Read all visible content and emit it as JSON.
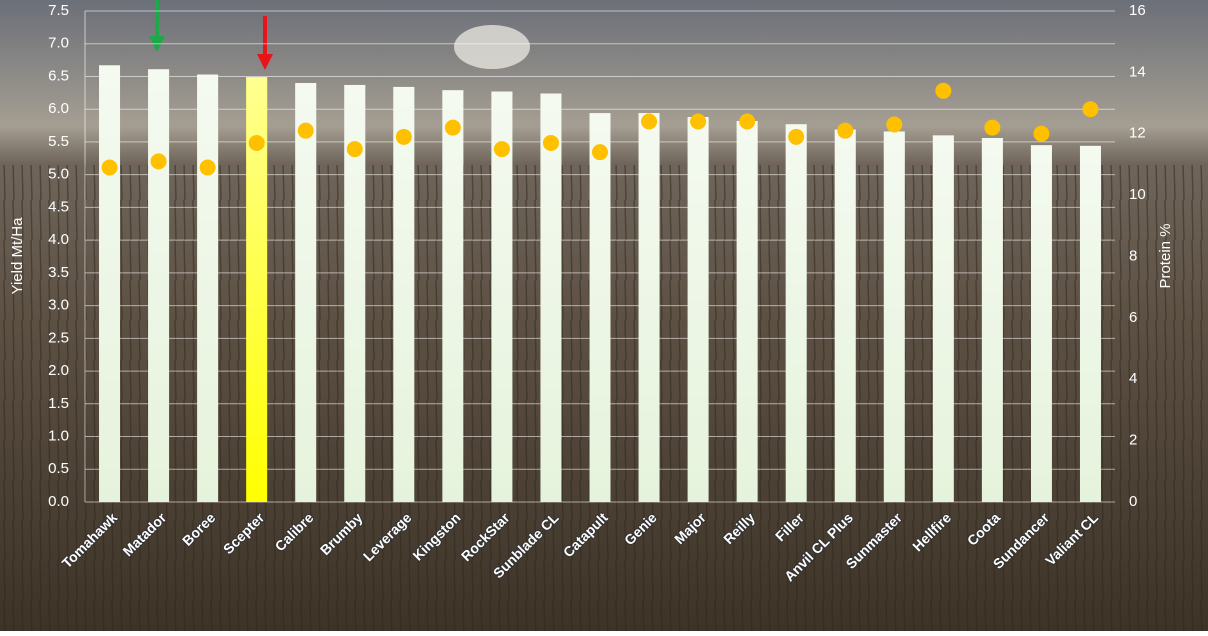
{
  "chart_data": {
    "type": "bar",
    "categories": [
      "Tomahawk",
      "Matador",
      "Boree",
      "Scepter",
      "Calibre",
      "Brumby",
      "Leverage",
      "Kingston",
      "RockStar",
      "Sunblade CL",
      "Catapult",
      "Genie",
      "Major",
      "Reilly",
      "Filler",
      "Anvil CL Plus",
      "Sunmaster",
      "Hellfire",
      "Coota",
      "Sundancer",
      "Valiant CL"
    ],
    "series": [
      {
        "type": "bar",
        "values": [
          6.67,
          6.61,
          6.53,
          6.49,
          6.4,
          6.37,
          6.34,
          6.29,
          6.27,
          6.24,
          5.94,
          5.94,
          5.88,
          5.82,
          5.77,
          5.69,
          5.66,
          5.6,
          5.56,
          5.45,
          5.44
        ],
        "colors": [
          "#e6f3dc",
          "#e6f3dc",
          "#e6f3dc",
          "#ffff00",
          "#e6f3dc",
          "#e6f3dc",
          "#e6f3dc",
          "#e6f3dc",
          "#e6f3dc",
          "#e6f3dc",
          "#e6f3dc",
          "#e6f3dc",
          "#e6f3dc",
          "#e6f3dc",
          "#e6f3dc",
          "#e6f3dc",
          "#e6f3dc",
          "#e6f3dc",
          "#e6f3dc",
          "#e6f3dc",
          "#e6f3dc"
        ]
      },
      {
        "type": "scatter",
        "axis": "y2",
        "color": "#ffc000",
        "values": [
          10.9,
          11.1,
          10.9,
          11.7,
          12.1,
          11.5,
          11.9,
          12.2,
          11.5,
          11.7,
          11.4,
          12.4,
          12.4,
          12.4,
          11.9,
          12.1,
          12.3,
          13.4,
          12.2,
          12.0,
          12.8
        ]
      }
    ],
    "y_label": "Yield Mt/Ha",
    "y2_label": "Protein %",
    "ylim": [
      0,
      7.5
    ],
    "yticks": [
      {
        "value": 0,
        "label": "0.0"
      },
      0.5,
      {
        "value": 1,
        "label": "1.0"
      },
      1.5,
      {
        "value": 2,
        "label": "2.0"
      },
      2.5,
      {
        "value": 3,
        "label": "3.0"
      },
      3.5,
      {
        "value": 4,
        "label": "4.0"
      },
      4.5,
      {
        "value": 5,
        "label": "5.0"
      },
      5.5,
      {
        "value": 6,
        "label": "6.0"
      },
      6.5,
      {
        "value": 7,
        "label": "7.0"
      },
      7.5
    ],
    "y2lim": [
      0,
      16
    ],
    "y2ticks": [
      0,
      2,
      4,
      6,
      8,
      10,
      12,
      14,
      16
    ],
    "grid": true
  }
}
